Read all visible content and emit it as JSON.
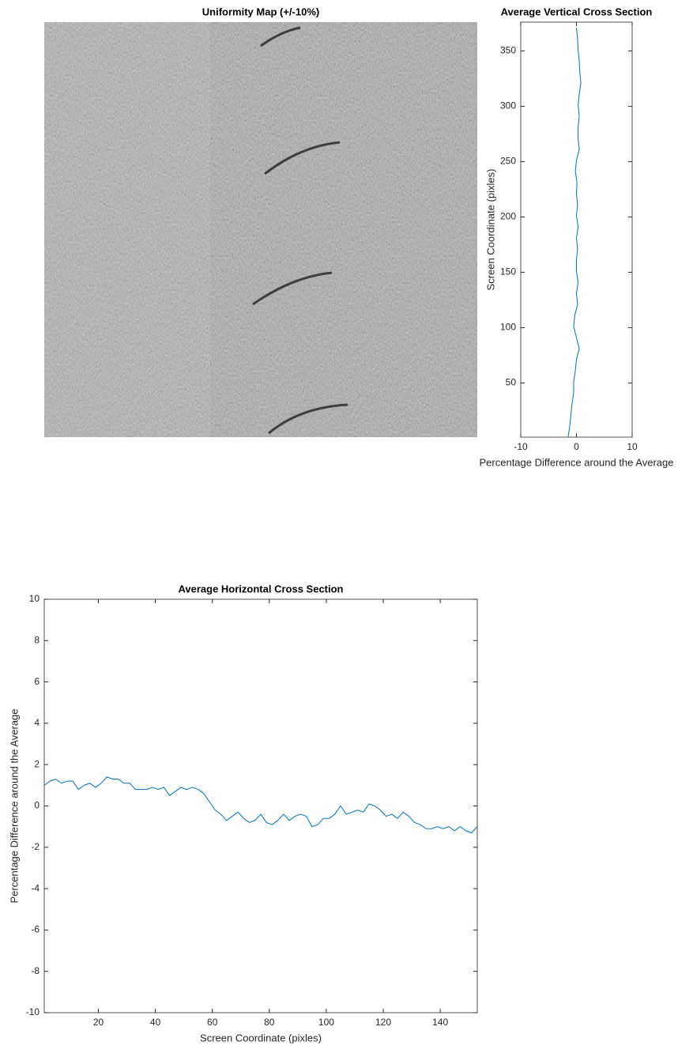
{
  "chart_data": [
    {
      "type": "image",
      "title": "Uniformity Map (+/-10%)"
    },
    {
      "type": "vline",
      "title": "Average Vertical Cross Section",
      "x_label": "Percentage Difference around the Average",
      "y_label": "Screen Coordinate (pixles)",
      "xlim": [
        -10,
        10
      ],
      "xticks": [
        -10,
        0,
        10
      ],
      "ylim": [
        1,
        376
      ],
      "yticks": [
        50,
        100,
        150,
        200,
        250,
        300,
        350
      ],
      "series": [
        {
          "color": "#0072bd",
          "y": [
            1,
            11,
            21,
            31,
            41,
            51,
            61,
            71,
            81,
            91,
            101,
            111,
            121,
            131,
            141,
            151,
            161,
            171,
            181,
            191,
            201,
            211,
            221,
            231,
            241,
            251,
            261,
            271,
            281,
            291,
            301,
            311,
            321,
            331,
            341,
            351,
            361,
            371
          ],
          "values": [
            -1.5,
            -1.2,
            -1.0,
            -0.8,
            -0.5,
            -0.5,
            -0.2,
            0.0,
            0.5,
            0.0,
            -0.5,
            -0.3,
            0.2,
            0.0,
            0.3,
            0.0,
            0.0,
            0.2,
            0.0,
            0.3,
            0.0,
            0.2,
            0.0,
            0.1,
            -0.2,
            0.0,
            0.5,
            0.3,
            0.3,
            0.5,
            0.3,
            0.5,
            0.8,
            0.6,
            0.5,
            0.3,
            0.2,
            0.0
          ]
        }
      ]
    },
    {
      "type": "line",
      "title": "Average Horizontal Cross Section",
      "x_label": "Screen Coordinate (pixles)",
      "y_label": "Percentage Difference around the Average",
      "xlim": [
        1,
        153
      ],
      "xticks": [
        20,
        40,
        60,
        80,
        100,
        120,
        140
      ],
      "ylim": [
        -10,
        10
      ],
      "yticks": [
        -10,
        -8,
        -6,
        -4,
        -2,
        0,
        2,
        4,
        6,
        8,
        10
      ],
      "series": [
        {
          "color": "#0072bd",
          "x": [
            1,
            3,
            5,
            7,
            9,
            11,
            13,
            15,
            17,
            19,
            21,
            23,
            25,
            27,
            29,
            31,
            33,
            35,
            37,
            39,
            41,
            43,
            45,
            47,
            49,
            51,
            53,
            55,
            57,
            59,
            61,
            63,
            65,
            67,
            69,
            71,
            73,
            75,
            77,
            79,
            81,
            83,
            85,
            87,
            89,
            91,
            93,
            95,
            97,
            99,
            101,
            103,
            105,
            107,
            109,
            111,
            113,
            115,
            117,
            119,
            121,
            123,
            125,
            127,
            129,
            131,
            133,
            135,
            137,
            139,
            141,
            143,
            145,
            147,
            149,
            151,
            153
          ],
          "values": [
            1.0,
            1.2,
            1.3,
            1.1,
            1.2,
            1.2,
            0.8,
            1.0,
            1.1,
            0.9,
            1.1,
            1.4,
            1.3,
            1.3,
            1.1,
            1.1,
            0.8,
            0.8,
            0.8,
            0.9,
            0.8,
            0.9,
            0.5,
            0.7,
            0.9,
            0.8,
            0.9,
            0.8,
            0.6,
            0.2,
            -0.2,
            -0.4,
            -0.7,
            -0.5,
            -0.3,
            -0.6,
            -0.8,
            -0.7,
            -0.4,
            -0.8,
            -0.9,
            -0.7,
            -0.4,
            -0.7,
            -0.5,
            -0.4,
            -0.5,
            -1.0,
            -0.9,
            -0.6,
            -0.6,
            -0.4,
            0.0,
            -0.4,
            -0.3,
            -0.2,
            -0.3,
            0.1,
            0.0,
            -0.2,
            -0.5,
            -0.4,
            -0.6,
            -0.3,
            -0.5,
            -0.8,
            -0.9,
            -1.1,
            -1.1,
            -1.0,
            -1.1,
            -1.0,
            -1.2,
            -1.0,
            -1.2,
            -1.3,
            -1.0
          ]
        }
      ]
    }
  ]
}
